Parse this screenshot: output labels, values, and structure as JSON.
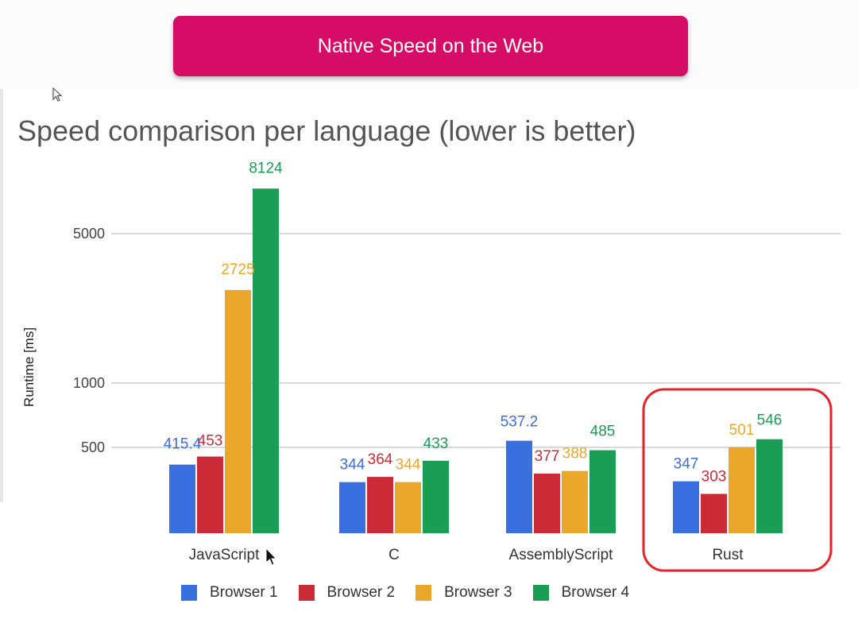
{
  "banner": {
    "label": "Native Speed on the Web"
  },
  "colors": {
    "banner": "#d60d66",
    "series": [
      "#3a6fe0",
      "#cb2b36",
      "#eaa72a",
      "#1a9e55"
    ],
    "highlight": "#e8222a",
    "grid": "#cccccc"
  },
  "chart_data": {
    "type": "bar",
    "title": "Speed comparison per language (lower is better)",
    "xlabel": "",
    "ylabel": "Runtime [ms]",
    "y_scale": "log",
    "yticks": [
      500,
      1000,
      5000
    ],
    "ylim": [
      200,
      10000
    ],
    "grid": true,
    "legend_position": "bottom",
    "categories": [
      "JavaScript",
      "C",
      "AssemblyScript",
      "Rust"
    ],
    "series": [
      {
        "name": "Browser 1",
        "values": [
          415.4,
          344,
          537.2,
          347
        ]
      },
      {
        "name": "Browser 2",
        "values": [
          453,
          364,
          377,
          303
        ]
      },
      {
        "name": "Browser 3",
        "values": [
          2725,
          344,
          388,
          501
        ]
      },
      {
        "name": "Browser 4",
        "values": [
          8124,
          433,
          485,
          546
        ]
      }
    ],
    "highlighted_category": "Rust"
  }
}
